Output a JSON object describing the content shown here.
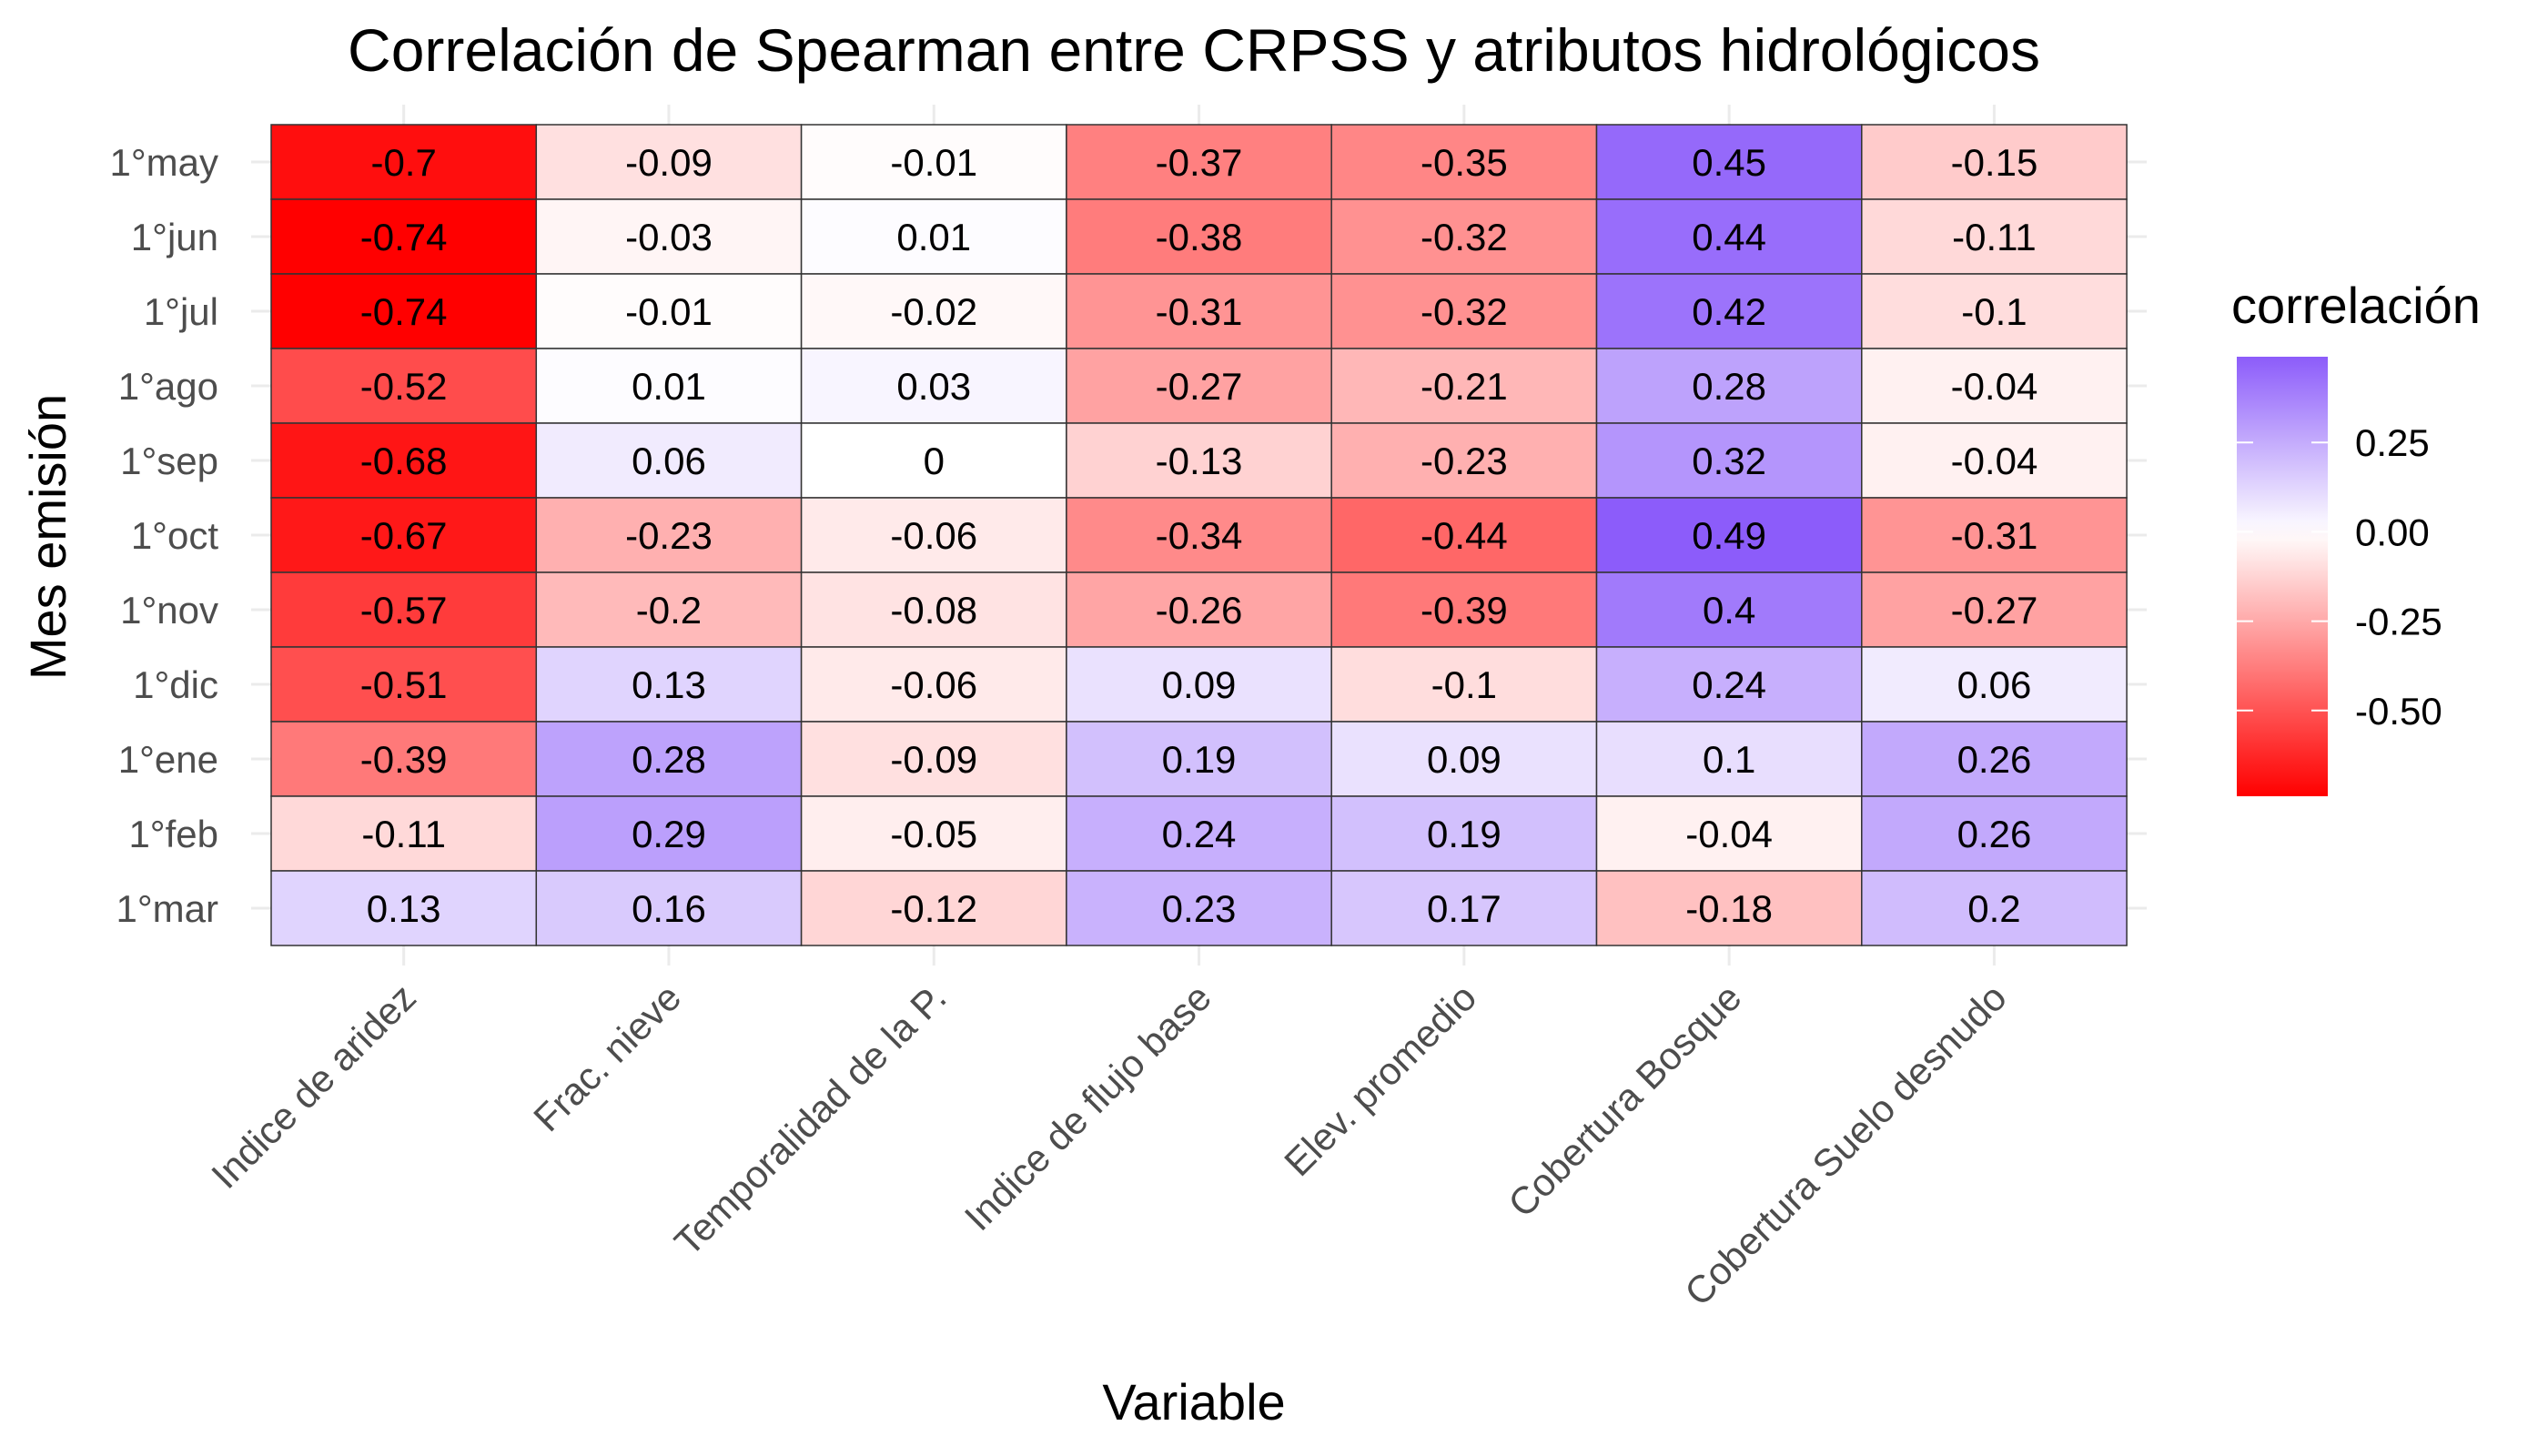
{
  "chart_data": {
    "type": "heatmap",
    "title": "Correlación de Spearman entre CRPSS y atributos hidrológicos",
    "xlabel": "Variable",
    "ylabel": "Mes emisión",
    "x_categories": [
      "Indice de aridez",
      "Frac. nieve",
      "Temporalidad de la P.",
      "Indice de flujo base",
      "Elev. promedio",
      "Cobertura Bosque",
      "Cobertura Suelo desnudo"
    ],
    "y_categories": [
      "1°may",
      "1°jun",
      "1°jul",
      "1°ago",
      "1°sep",
      "1°oct",
      "1°nov",
      "1°dic",
      "1°ene",
      "1°feb",
      "1°mar"
    ],
    "values": [
      [
        -0.7,
        -0.09,
        -0.01,
        -0.37,
        -0.35,
        0.45,
        -0.15
      ],
      [
        -0.74,
        -0.03,
        0.01,
        -0.38,
        -0.32,
        0.44,
        -0.11
      ],
      [
        -0.74,
        -0.01,
        -0.02,
        -0.31,
        -0.32,
        0.42,
        -0.1
      ],
      [
        -0.52,
        0.01,
        0.03,
        -0.27,
        -0.21,
        0.28,
        -0.04
      ],
      [
        -0.68,
        0.06,
        0,
        -0.13,
        -0.23,
        0.32,
        -0.04
      ],
      [
        -0.67,
        -0.23,
        -0.06,
        -0.34,
        -0.44,
        0.49,
        -0.31
      ],
      [
        -0.57,
        -0.2,
        -0.08,
        -0.26,
        -0.39,
        0.4,
        -0.27
      ],
      [
        -0.51,
        0.13,
        -0.06,
        0.09,
        -0.1,
        0.24,
        0.06
      ],
      [
        -0.39,
        0.28,
        -0.09,
        0.19,
        0.09,
        0.1,
        0.26
      ],
      [
        -0.11,
        0.29,
        -0.05,
        0.24,
        0.19,
        -0.04,
        0.26
      ],
      [
        0.13,
        0.16,
        -0.12,
        0.23,
        0.17,
        -0.18,
        0.2
      ]
    ],
    "legend": {
      "title": "correlación",
      "ticks": [
        0.25,
        0.0,
        -0.25,
        -0.5
      ],
      "tick_labels": [
        "0.25",
        "0.00",
        "-0.25",
        "-0.50"
      ],
      "range": [
        -0.74,
        0.49
      ],
      "placement": "right"
    },
    "colors": {
      "low": "#ff0000",
      "mid": "#ffffff",
      "high": "#8c5cfa"
    },
    "grid": true
  }
}
